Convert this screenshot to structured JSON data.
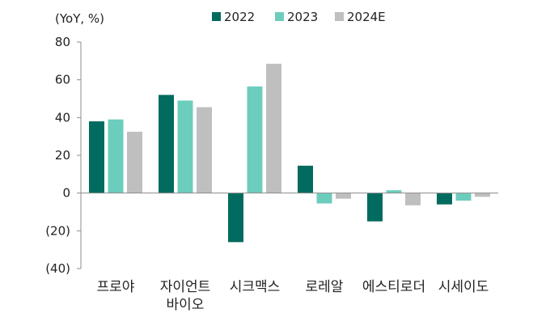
{
  "chart_data": {
    "type": "bar",
    "y_unit_label": "(YoY, %)",
    "categories": [
      [
        "프로야"
      ],
      [
        "자이언트",
        "바이오"
      ],
      [
        "시크맥스"
      ],
      [
        "로레알"
      ],
      [
        "에스티로더"
      ],
      [
        "시세이도"
      ]
    ],
    "series": [
      {
        "name": "2022",
        "color": "#006B5E",
        "values": [
          38,
          52,
          -26,
          14.5,
          -15,
          -6
        ]
      },
      {
        "name": "2023",
        "color": "#6CCDBD",
        "values": [
          39,
          49,
          56.5,
          -5.5,
          1.5,
          -4
        ]
      },
      {
        "name": "2024E",
        "color": "#BFBFBF",
        "values": [
          32.5,
          45.5,
          68.5,
          -3,
          -6.5,
          -2
        ]
      }
    ],
    "ylim": [
      -40,
      80
    ],
    "yticks": [
      {
        "value": 80,
        "label": "80"
      },
      {
        "value": 60,
        "label": "60"
      },
      {
        "value": 40,
        "label": "40"
      },
      {
        "value": 20,
        "label": "20"
      },
      {
        "value": 0,
        "label": "0"
      },
      {
        "value": -20,
        "label": "(20)"
      },
      {
        "value": -40,
        "label": "(40)"
      }
    ],
    "grid": false,
    "legend_position": "top-center"
  }
}
